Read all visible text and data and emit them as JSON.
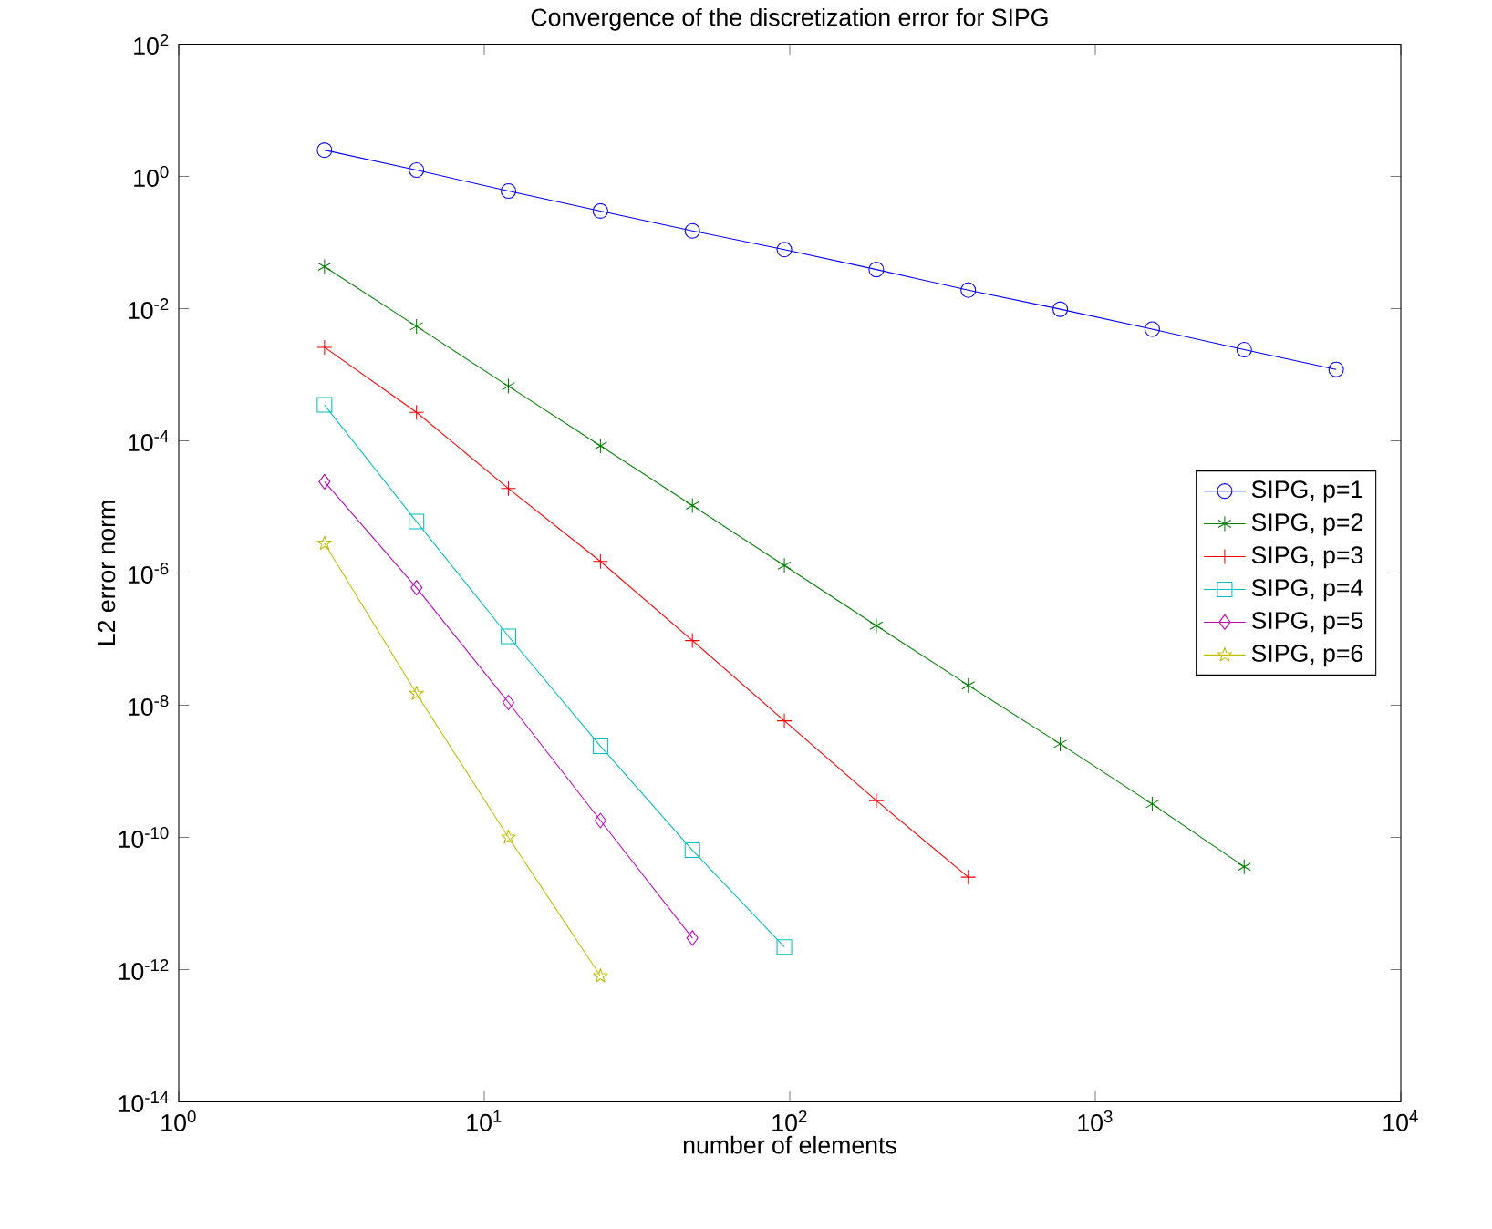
{
  "chart_data": {
    "type": "line",
    "title": "Convergence of the discretization error for SIPG",
    "xlabel": "number of elements",
    "ylabel": "L2 error norm",
    "log": "xy",
    "grid": false,
    "legend": "right",
    "xlim": [
      1,
      10000
    ],
    "ylim": [
      1e-14,
      100
    ],
    "xticks": [
      {
        "value": 1,
        "label": "10$^{0}$"
      },
      {
        "value": 10,
        "label": "10$^{1}$"
      },
      {
        "value": 100,
        "label": "10$^{2}$"
      },
      {
        "value": 1000,
        "label": "10$^{3}$"
      },
      {
        "value": 10000,
        "label": "10$^{4}$"
      }
    ],
    "yticks": [
      {
        "value": 1e-14,
        "label": "10$^{-14}$"
      },
      {
        "value": 1e-12,
        "label": "10$^{-12}$"
      },
      {
        "value": 1e-10,
        "label": "10$^{-10}$"
      },
      {
        "value": 1e-08,
        "label": "10$^{-8}$"
      },
      {
        "value": 1e-06,
        "label": "10$^{-6}$"
      },
      {
        "value": 0.0001,
        "label": "10$^{-4}$"
      },
      {
        "value": 0.01,
        "label": "10$^{-2}$"
      },
      {
        "value": 1,
        "label": "10$^{0}$"
      },
      {
        "value": 100,
        "label": "10$^{2}$"
      }
    ],
    "series": [
      {
        "name": "SIPG, p=1",
        "color": "#0000ff",
        "marker": "circle",
        "x": [
          3,
          6,
          12,
          24,
          48,
          96,
          192,
          384,
          768,
          1536,
          3072,
          6144
        ],
        "values": [
          2.5,
          1.25,
          0.6,
          0.3,
          0.15,
          0.078,
          0.039,
          0.019,
          0.0098,
          0.0049,
          0.0024,
          0.0012
        ]
      },
      {
        "name": "SIPG, p=2",
        "color": "#008000",
        "marker": "cross",
        "x": [
          3,
          6,
          12,
          24,
          48,
          96,
          192,
          384,
          768,
          1536,
          3072
        ],
        "values": [
          0.043,
          0.0054,
          0.00067,
          8.4e-05,
          1.05e-05,
          1.3e-06,
          1.6e-07,
          2e-08,
          2.6e-09,
          3.2e-10,
          3.6e-11
        ]
      },
      {
        "name": "SIPG, p=3",
        "color": "#ff0000",
        "marker": "cross",
        "x": [
          3,
          6,
          12,
          24,
          48,
          96,
          192,
          384
        ],
        "values": [
          0.0026,
          0.00027,
          1.9e-05,
          1.5e-06,
          9.5e-08,
          5.8e-09,
          3.6e-10,
          2.5e-11
        ]
      },
      {
        "name": "SIPG, p=4",
        "color": "#00bfbf",
        "marker": "square",
        "x": [
          3,
          6,
          12,
          24,
          48,
          96
        ],
        "values": [
          0.00035,
          6e-06,
          1.1e-07,
          2.4e-09,
          6.4e-11,
          2.2e-12
        ]
      },
      {
        "name": "SIPG, p=5",
        "color": "#bf00bf",
        "marker": "diamond",
        "x": [
          3,
          6,
          12,
          24,
          48
        ],
        "values": [
          2.4e-05,
          6e-07,
          1.1e-08,
          1.8e-10,
          3e-12
        ]
      },
      {
        "name": "SIPG, p=6",
        "color": "#bfbf00",
        "marker": "star",
        "x": [
          3,
          6,
          12,
          24
        ],
        "values": [
          2.8e-06,
          1.5e-08,
          1e-10,
          8e-13
        ]
      }
    ]
  }
}
